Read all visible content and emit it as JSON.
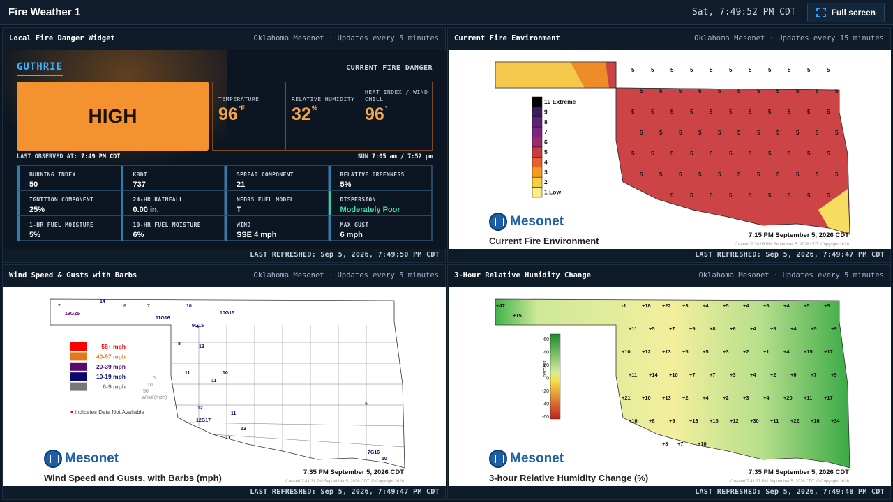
{
  "app": {
    "title": "Fire Weather 1",
    "clock": "Sat, 7:49:52 PM CDT",
    "fullscreen_label": "Full screen"
  },
  "panel1": {
    "title": "Local Fire Danger Widget",
    "source": "Oklahoma Mesonet · Updates every 5 minutes",
    "refreshed": "LAST REFRESHED: Sep 5, 2026, 7:49:50 PM CDT",
    "city": "GUTHRIE",
    "current_label": "CURRENT FIRE DANGER",
    "danger": "HIGH",
    "danger_color": "#f49230",
    "temperature": {
      "label": "TEMPERATURE",
      "value": "96",
      "unit": "°F"
    },
    "humidity": {
      "label": "RELATIVE HUMIDITY",
      "value": "32",
      "unit": "%"
    },
    "heat_index": {
      "label": "HEAT INDEX / WIND CHILL",
      "value": "96",
      "unit": "°"
    },
    "observed_label": "LAST OBSERVED AT:",
    "observed_time": "7:49 PM CDT",
    "sun_label": "SUN",
    "sun_times": "7:05 am / 7:52 pm",
    "cells": [
      {
        "label": "BURNING INDEX",
        "value": "50"
      },
      {
        "label": "KBDI",
        "value": "737"
      },
      {
        "label": "SPREAD COMPONENT",
        "value": "21"
      },
      {
        "label": "RELATIVE GREENNESS",
        "value": "5%"
      },
      {
        "label": "IGNITION COMPONENT",
        "value": "25%"
      },
      {
        "label": "24-HR RAINFALL",
        "value": "0.00 in."
      },
      {
        "label": "NFDRS FUEL MODEL",
        "value": "T"
      },
      {
        "label": "DISPERSION",
        "value": "Moderately Poor"
      },
      {
        "label": "1-HR FUEL MOISTURE",
        "value": "5%"
      },
      {
        "label": "10-HR FUEL MOISTURE",
        "value": "6%"
      },
      {
        "label": "WIND",
        "value": "SSE 4 mph"
      },
      {
        "label": "MAX GUST",
        "value": "6 mph"
      }
    ]
  },
  "panel2": {
    "title": "Current Fire Environment",
    "source": "Oklahoma Mesonet · Updates every 15 minutes",
    "refreshed": "LAST REFRESHED: Sep 5, 2026, 7:49:47 PM CDT",
    "logo": "Mesonet",
    "caption": "Current Fire Environment",
    "time": "7:15 PM September 5, 2026 CDT",
    "copyright": "Created 7:38:05 PM September 5, 2026 CDT. Copyright 2026",
    "legend": [
      "10 Extreme",
      "9",
      "8",
      "7",
      "6",
      "5",
      "4",
      "3",
      "2",
      "1 Low"
    ],
    "legend_colors": [
      "#000000",
      "#3c1a5e",
      "#5b2277",
      "#7a2580",
      "#9a2a6e",
      "#cc3c3e",
      "#e7622a",
      "#f39c1f",
      "#f6cf3e",
      "#f7ee8b"
    ],
    "fill_color": "#cd4447",
    "station_value": "5"
  },
  "panel3": {
    "title": "Wind Speed & Gusts with Barbs",
    "source": "Oklahoma Mesonet · Updates every 5 minutes",
    "refreshed": "LAST REFRESHED: Sep 5, 2026, 7:49:47 PM CDT",
    "logo": "Mesonet",
    "caption": "Wind Speed and Gusts, with Barbs (mph)",
    "time": "7:35 PM September 5, 2026 CDT",
    "copyright": "Created 7:41:31 PM September 5, 2026 CDT. © Copyright 2026",
    "legend": [
      {
        "label": "58+ mph",
        "color": "#ff0000"
      },
      {
        "label": "40-57 mph",
        "color": "#e07a1c"
      },
      {
        "label": "20-39 mph",
        "color": "#5a0a6e"
      },
      {
        "label": "10-19 mph",
        "color": "#0a0a6e"
      },
      {
        "label": "0-9 mph",
        "color": "#777777"
      }
    ],
    "barb_scale": [
      "5",
      "10",
      "50",
      "Wind (mph)"
    ],
    "na_note": "Indicates Data Not Available",
    "labels": [
      "7",
      "19G25",
      "14",
      "6",
      "7",
      "11G16",
      "10",
      "9",
      "10G15",
      "9G15",
      "13",
      "8",
      "11",
      "10",
      "11",
      "12",
      "12G17",
      "11",
      "13",
      "11",
      "6",
      "7G16",
      "10"
    ]
  },
  "panel4": {
    "title": "3-Hour Relative Humidity Change",
    "source": "Oklahoma Mesonet · Updates every 5 minutes",
    "refreshed": "LAST REFRESHED: Sep 5, 2026, 7:49:48 PM CDT",
    "logo": "Mesonet",
    "caption": "3-hour Relative Humidity Change (%)",
    "time": "7:35 PM September 5, 2026 CDT",
    "copyright": "Created 7:41:37 PM September 5, 2026 CDT. © Copyright 2026",
    "scale_label": "percent",
    "scale_ticks": [
      "60",
      "40",
      "20",
      "0",
      "-20",
      "-40",
      "-60"
    ],
    "labels": [
      "+47",
      "+15",
      "-1",
      "+18",
      "+22",
      "+3",
      "+4",
      "+5",
      "+4",
      "+8",
      "+4",
      "+5",
      "+5",
      "+11",
      "+5",
      "+7",
      "+9",
      "+8",
      "+6",
      "+4",
      "+3",
      "+4",
      "+5",
      "+9",
      "+10",
      "+12",
      "+13",
      "+5",
      "+5",
      "+3",
      "+2",
      "+1",
      "+4",
      "+15",
      "+17",
      "+11",
      "+14",
      "+10",
      "+7",
      "+7",
      "+3",
      "+4",
      "+2",
      "+6",
      "+7",
      "+5",
      "+21",
      "+10",
      "+13",
      "+2",
      "+4",
      "+2",
      "+3",
      "+4",
      "+20",
      "+11",
      "+17",
      "+10",
      "+8",
      "+9",
      "+13",
      "+15",
      "+12",
      "+30",
      "+11",
      "+22",
      "+16",
      "+34",
      "+7",
      "+10",
      "+8"
    ]
  }
}
